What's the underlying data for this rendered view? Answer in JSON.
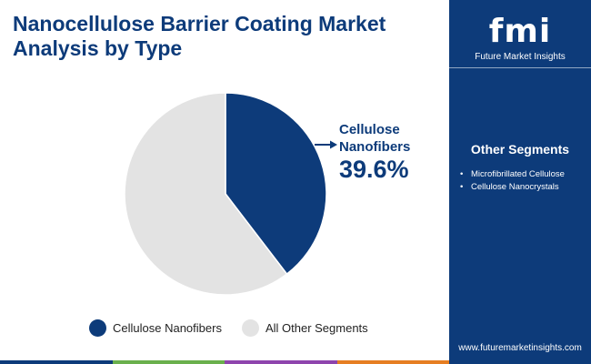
{
  "title": {
    "line1": "Nanocellulose Barrier Coating Market",
    "line2": "Analysis by Type"
  },
  "chart_data": {
    "type": "pie",
    "title": "Nanocellulose Barrier Coating Market Analysis by Type",
    "slices": [
      {
        "label": "Cellulose Nanofibers",
        "value": 39.6,
        "color": "#0d3b7a"
      },
      {
        "label": "All Other Segments",
        "value": 60.4,
        "color": "#e3e3e3"
      }
    ],
    "callout": {
      "label": "Cellulose Nanofibers",
      "value_text": "39.6%"
    },
    "legend": {
      "placement": "bottom",
      "entries": [
        "Cellulose Nanofibers",
        "All Other Segments"
      ]
    }
  },
  "legend": [
    {
      "label": "Cellulose Nanofibers",
      "color": "#0d3b7a"
    },
    {
      "label": "All Other Segments",
      "color": "#e3e3e3"
    }
  ],
  "side_panel": {
    "logo_text": "fmi",
    "logo_subtitle": "Future Market Insights",
    "segments_title": "Other Segments",
    "segments": [
      "Microfibrillated Cellulose",
      "Cellulose Nanocrystals"
    ],
    "website": "www.futuremarketinsights.com"
  },
  "colors": {
    "brand_navy": "#0d3b7a",
    "other_gray": "#e3e3e3",
    "bar_colors": [
      "#0d3b7a",
      "#6ab04c",
      "#8e44ad",
      "#e67e22"
    ]
  },
  "icons": [
    "fmi-logo-icon"
  ]
}
